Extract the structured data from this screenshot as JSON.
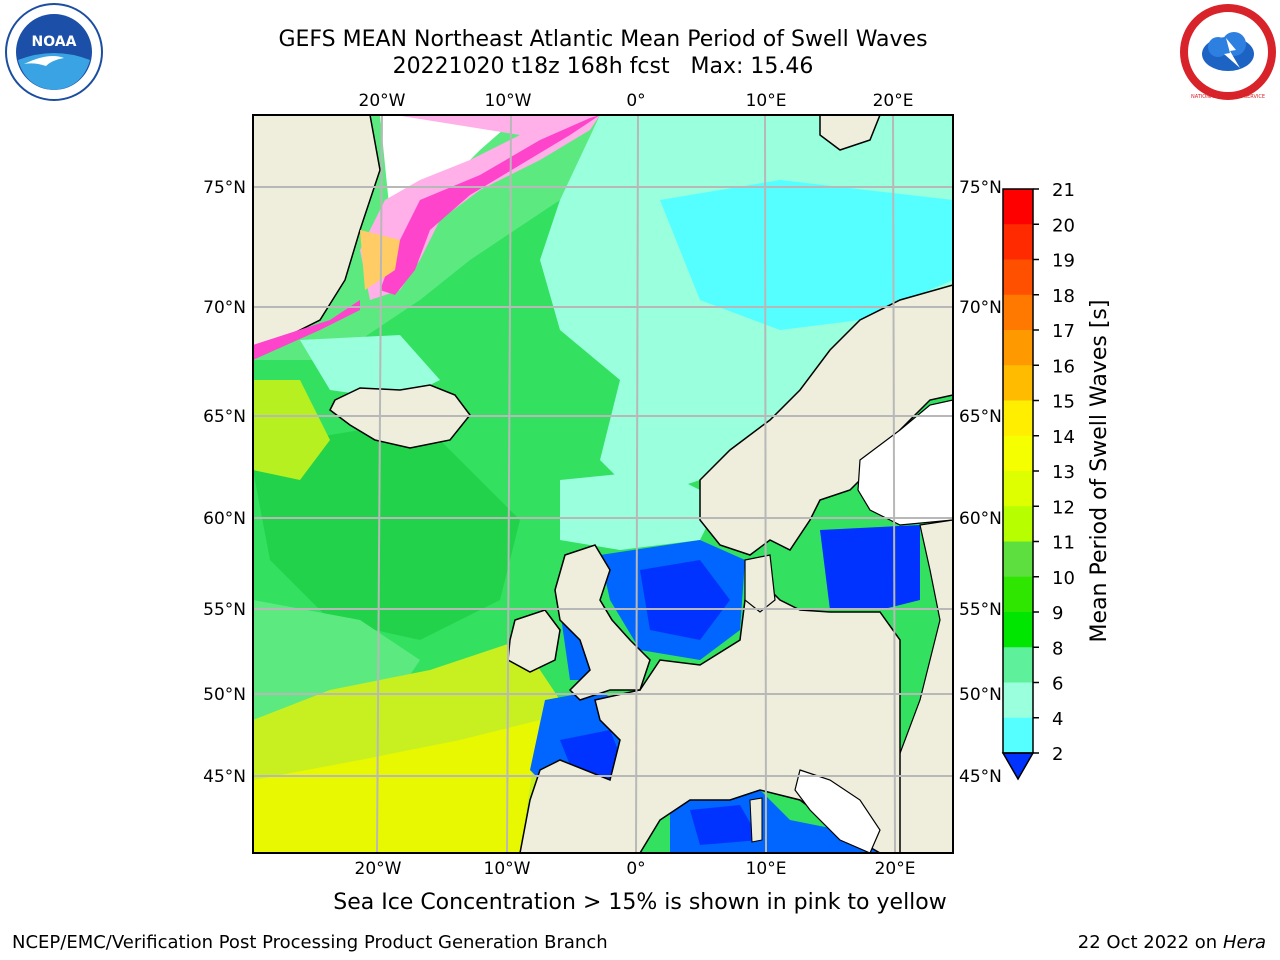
{
  "title": {
    "line1": "GEFS MEAN Northeast Atlantic Mean Period of Swell Waves",
    "line2": "20221020 t18z 168h fcst   Max: 15.46"
  },
  "logos": {
    "left": "noaa-logo",
    "left_text": "NOAA",
    "right": "nws-logo",
    "right_text": "NATIONAL WEATHER SERVICE"
  },
  "axes": {
    "top_lon_ticks": [
      "20°W",
      "10°W",
      "0°",
      "10°E",
      "20°E"
    ],
    "bottom_lon_ticks": [
      "20°W",
      "10°W",
      "0°",
      "10°E",
      "20°E"
    ],
    "left_lat_ticks": [
      "75°N",
      "70°N",
      "65°N",
      "60°N",
      "55°N",
      "50°N",
      "45°N"
    ],
    "right_lat_ticks": [
      "75°N",
      "70°N",
      "65°N",
      "60°N",
      "55°N",
      "50°N",
      "45°N"
    ]
  },
  "colorbar": {
    "label": "Mean Period of Swell Waves [s]",
    "ticks": [
      "21",
      "20",
      "19",
      "18",
      "17",
      "16",
      "15",
      "14",
      "13",
      "12",
      "11",
      "10",
      "9",
      "8",
      "6",
      "4",
      "2"
    ],
    "colors": [
      "#ff0000",
      "#ff2a00",
      "#ff5000",
      "#ff7800",
      "#ff9900",
      "#ffbb00",
      "#ffee00",
      "#f5ff00",
      "#ddff00",
      "#b7ff00",
      "#5cdf3f",
      "#2ee600",
      "#00e600",
      "#5ef09a",
      "#99ffdd",
      "#55ffff",
      "#00eeff",
      "#0066ff"
    ],
    "extend_below_color": "#0033ff"
  },
  "map_colors": {
    "land": "#efeedc",
    "ice": "#ff44cc",
    "coast": "#000000",
    "grid": "#b8b8b8"
  },
  "caption": "Sea Ice Concentration > 15% is shown in pink to yellow",
  "footer": {
    "left": "NCEP/EMC/Verification Post Processing Product Generation Branch",
    "right_date": "22 Oct 2022 on ",
    "right_machine": "Hera"
  }
}
